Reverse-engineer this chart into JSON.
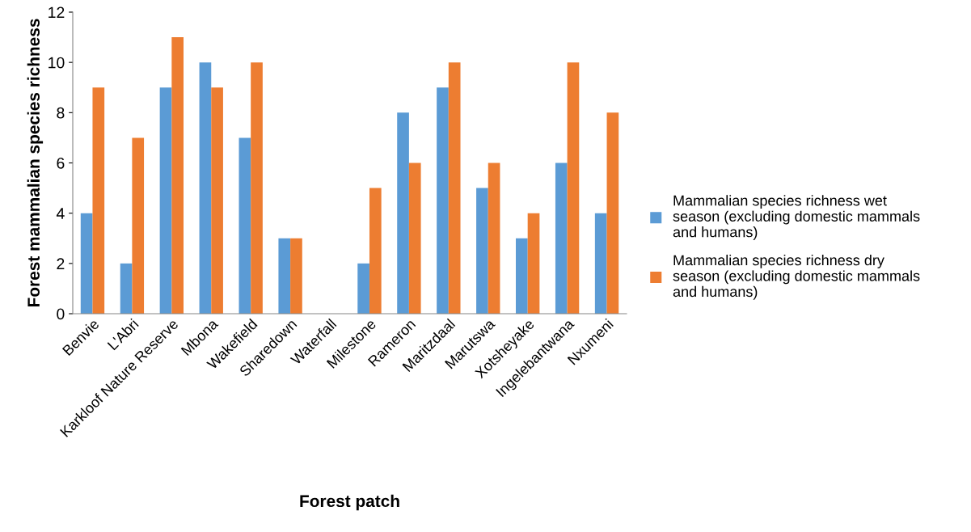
{
  "chart_data": {
    "type": "bar",
    "xlabel": "Forest patch",
    "ylabel": "Forest mammalian species richness",
    "categories": [
      "Benvie",
      "L'Abri",
      "Karkloof Nature Reserve",
      "Mbona",
      "Wakefield",
      "Sharedown",
      "Waterfall",
      "Milestone",
      "Rameron",
      "Maritzdaal",
      "Marutswa",
      "Xotsheyake",
      "Ingelebantwana",
      "Nxumeni"
    ],
    "series": [
      {
        "name": "Mammalian species richness wet season (excluding domestic mammals and humans)",
        "color": "#5b9bd5",
        "values": [
          4,
          2,
          9,
          10,
          7,
          3,
          0,
          2,
          8,
          9,
          5,
          3,
          6,
          4
        ]
      },
      {
        "name": "Mammalian species richness dry season (excluding domestic mammals and humans)",
        "color": "#ed7d31",
        "values": [
          9,
          7,
          11,
          9,
          10,
          3,
          0,
          5,
          6,
          10,
          6,
          4,
          10,
          8
        ]
      }
    ],
    "ylim": [
      0,
      12
    ],
    "yticks": [
      0,
      2,
      4,
      6,
      8,
      10,
      12
    ],
    "grid": false,
    "legend": "right"
  }
}
